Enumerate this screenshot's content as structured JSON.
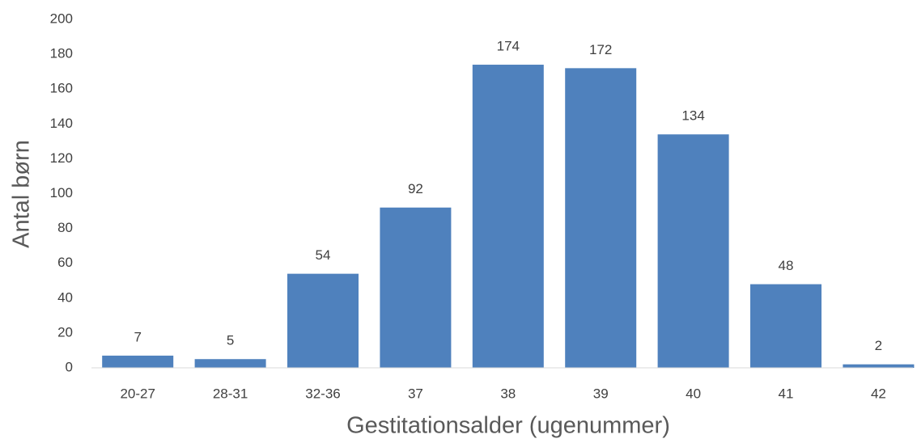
{
  "chart_data": {
    "type": "bar",
    "xlabel": "Gestitationsalder (ugenummer)",
    "ylabel": "Antal børn",
    "categories": [
      "20-27",
      "28-31",
      "32-36",
      "37",
      "38",
      "39",
      "40",
      "41",
      "42"
    ],
    "values": [
      7,
      5,
      54,
      92,
      174,
      172,
      134,
      48,
      2
    ],
    "color": "#4f81bd",
    "ylim": [
      0,
      200
    ],
    "yticks": [
      0,
      20,
      40,
      60,
      80,
      100,
      120,
      140,
      160,
      180,
      200
    ],
    "grid": false
  }
}
